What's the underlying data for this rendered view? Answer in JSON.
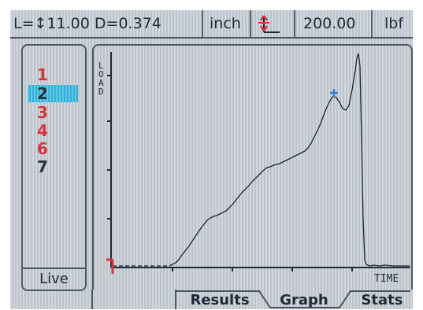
{
  "header": {
    "length_label": "L=↕",
    "length_value": "11.00",
    "diameter": "D=0.374",
    "unit": "inch",
    "load_value": "200.00",
    "force_unit": "lbf",
    "scale_icon": "axis-scale-icon"
  },
  "specimens": {
    "items": [
      {
        "label": "1",
        "color": "red"
      },
      {
        "label": "2",
        "color": "dark",
        "selected": true
      },
      {
        "label": "3",
        "color": "red"
      },
      {
        "label": "4",
        "color": "red"
      },
      {
        "label": "6",
        "color": "red"
      },
      {
        "label": "7",
        "color": "dark"
      }
    ],
    "live_label": "Live"
  },
  "graph": {
    "y_axis_label": "LOAD",
    "x_axis_label": "TIME",
    "origin_marker": "origin-flag-icon",
    "peak_marker": "peak-cross-icon"
  },
  "tabs": [
    {
      "label": "Results",
      "active": false
    },
    {
      "label": "Graph",
      "active": true
    },
    {
      "label": "Stats",
      "active": false
    }
  ],
  "colors": {
    "accent": "#3ab9e3",
    "red": "#d6343a",
    "dark": "#2a323e",
    "border": "#4d5562",
    "marker_blue": "#2a7fd0"
  }
}
